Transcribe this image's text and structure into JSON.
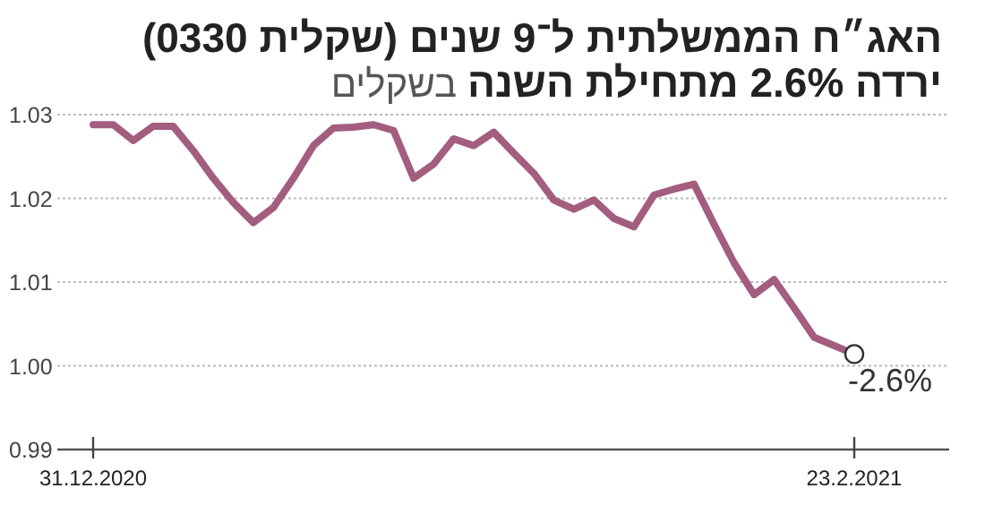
{
  "chart_data": {
    "type": "line",
    "title": "האג״ח הממשלתית ל־9 שנים (שקלית 0330)",
    "subtitle": "**ירדה 2.6% מתחילת השנה** בשקלים",
    "categories": [
      "31.12.2020",
      null,
      null,
      null,
      null,
      null,
      null,
      null,
      null,
      null,
      null,
      null,
      null,
      null,
      null,
      null,
      null,
      null,
      null,
      null,
      null,
      null,
      null,
      null,
      null,
      null,
      null,
      null,
      null,
      null,
      null,
      null,
      null,
      null,
      null,
      null,
      null,
      null,
      "23.2.2021"
    ],
    "series": [
      {
        "color": "#a35d7e",
        "values": [
          1.0288,
          1.0288,
          1.0269,
          1.0286,
          1.0286,
          1.0257,
          1.0224,
          1.0195,
          1.0171,
          1.0189,
          1.0224,
          1.0263,
          1.0284,
          1.0285,
          1.0288,
          1.0281,
          1.0224,
          1.0241,
          1.0271,
          1.0263,
          1.0279,
          1.0254,
          1.023,
          1.0198,
          1.0187,
          1.0198,
          1.0176,
          1.0166,
          1.0204,
          1.0211,
          1.0217,
          1.0169,
          1.0123,
          1.0085,
          1.0103,
          1.0069,
          1.0034,
          1.0024,
          1.0014
        ]
      }
    ],
    "ylim": [
      0.99,
      1.03
    ],
    "yticks": [
      0.99,
      {
        "value": 1,
        "label": "1.00"
      },
      1.01,
      1.02,
      1.03
    ],
    "grid": "y",
    "annotations": [
      {
        "text": "-2.6%",
        "x": "23.2.2021",
        "y": 1.0014
      }
    ]
  }
}
